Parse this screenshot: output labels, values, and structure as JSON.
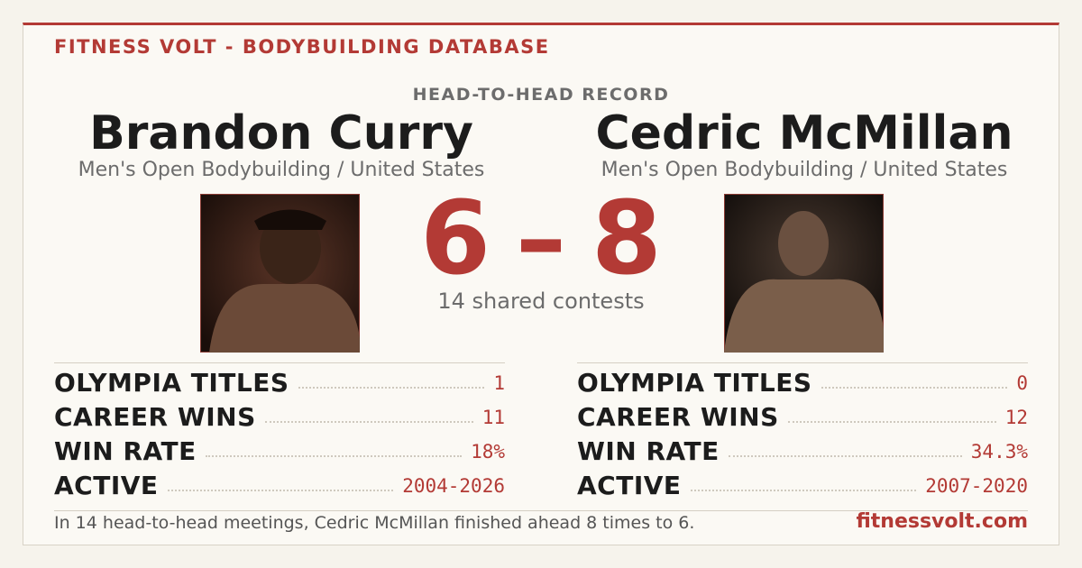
{
  "header": {
    "brand": "FITNESS VOLT - BODYBUILDING DATABASE"
  },
  "record": {
    "title": "HEAD-TO-HEAD RECORD",
    "score": {
      "left": 6,
      "separator": "–",
      "right": 8
    },
    "shared": "14 shared contests"
  },
  "athletes": [
    {
      "name": "Brandon Curry",
      "division": "Men's Open Bodybuilding / United States",
      "stats": [
        {
          "label": "OLYMPIA TITLES",
          "value": "1"
        },
        {
          "label": "CAREER WINS",
          "value": "11"
        },
        {
          "label": "WIN RATE",
          "value": "18%"
        },
        {
          "label": "ACTIVE",
          "value": "2004-2026"
        }
      ]
    },
    {
      "name": "Cedric McMillan",
      "division": "Men's Open Bodybuilding / United States",
      "stats": [
        {
          "label": "OLYMPIA TITLES",
          "value": "0"
        },
        {
          "label": "CAREER WINS",
          "value": "12"
        },
        {
          "label": "WIN RATE",
          "value": "34.3%"
        },
        {
          "label": "ACTIVE",
          "value": "2007-2020"
        }
      ]
    }
  ],
  "footer": {
    "summary": "In 14 head-to-head meetings, Cedric McMillan finished ahead 8 times to 6.",
    "site": "fitnessvolt.com"
  }
}
